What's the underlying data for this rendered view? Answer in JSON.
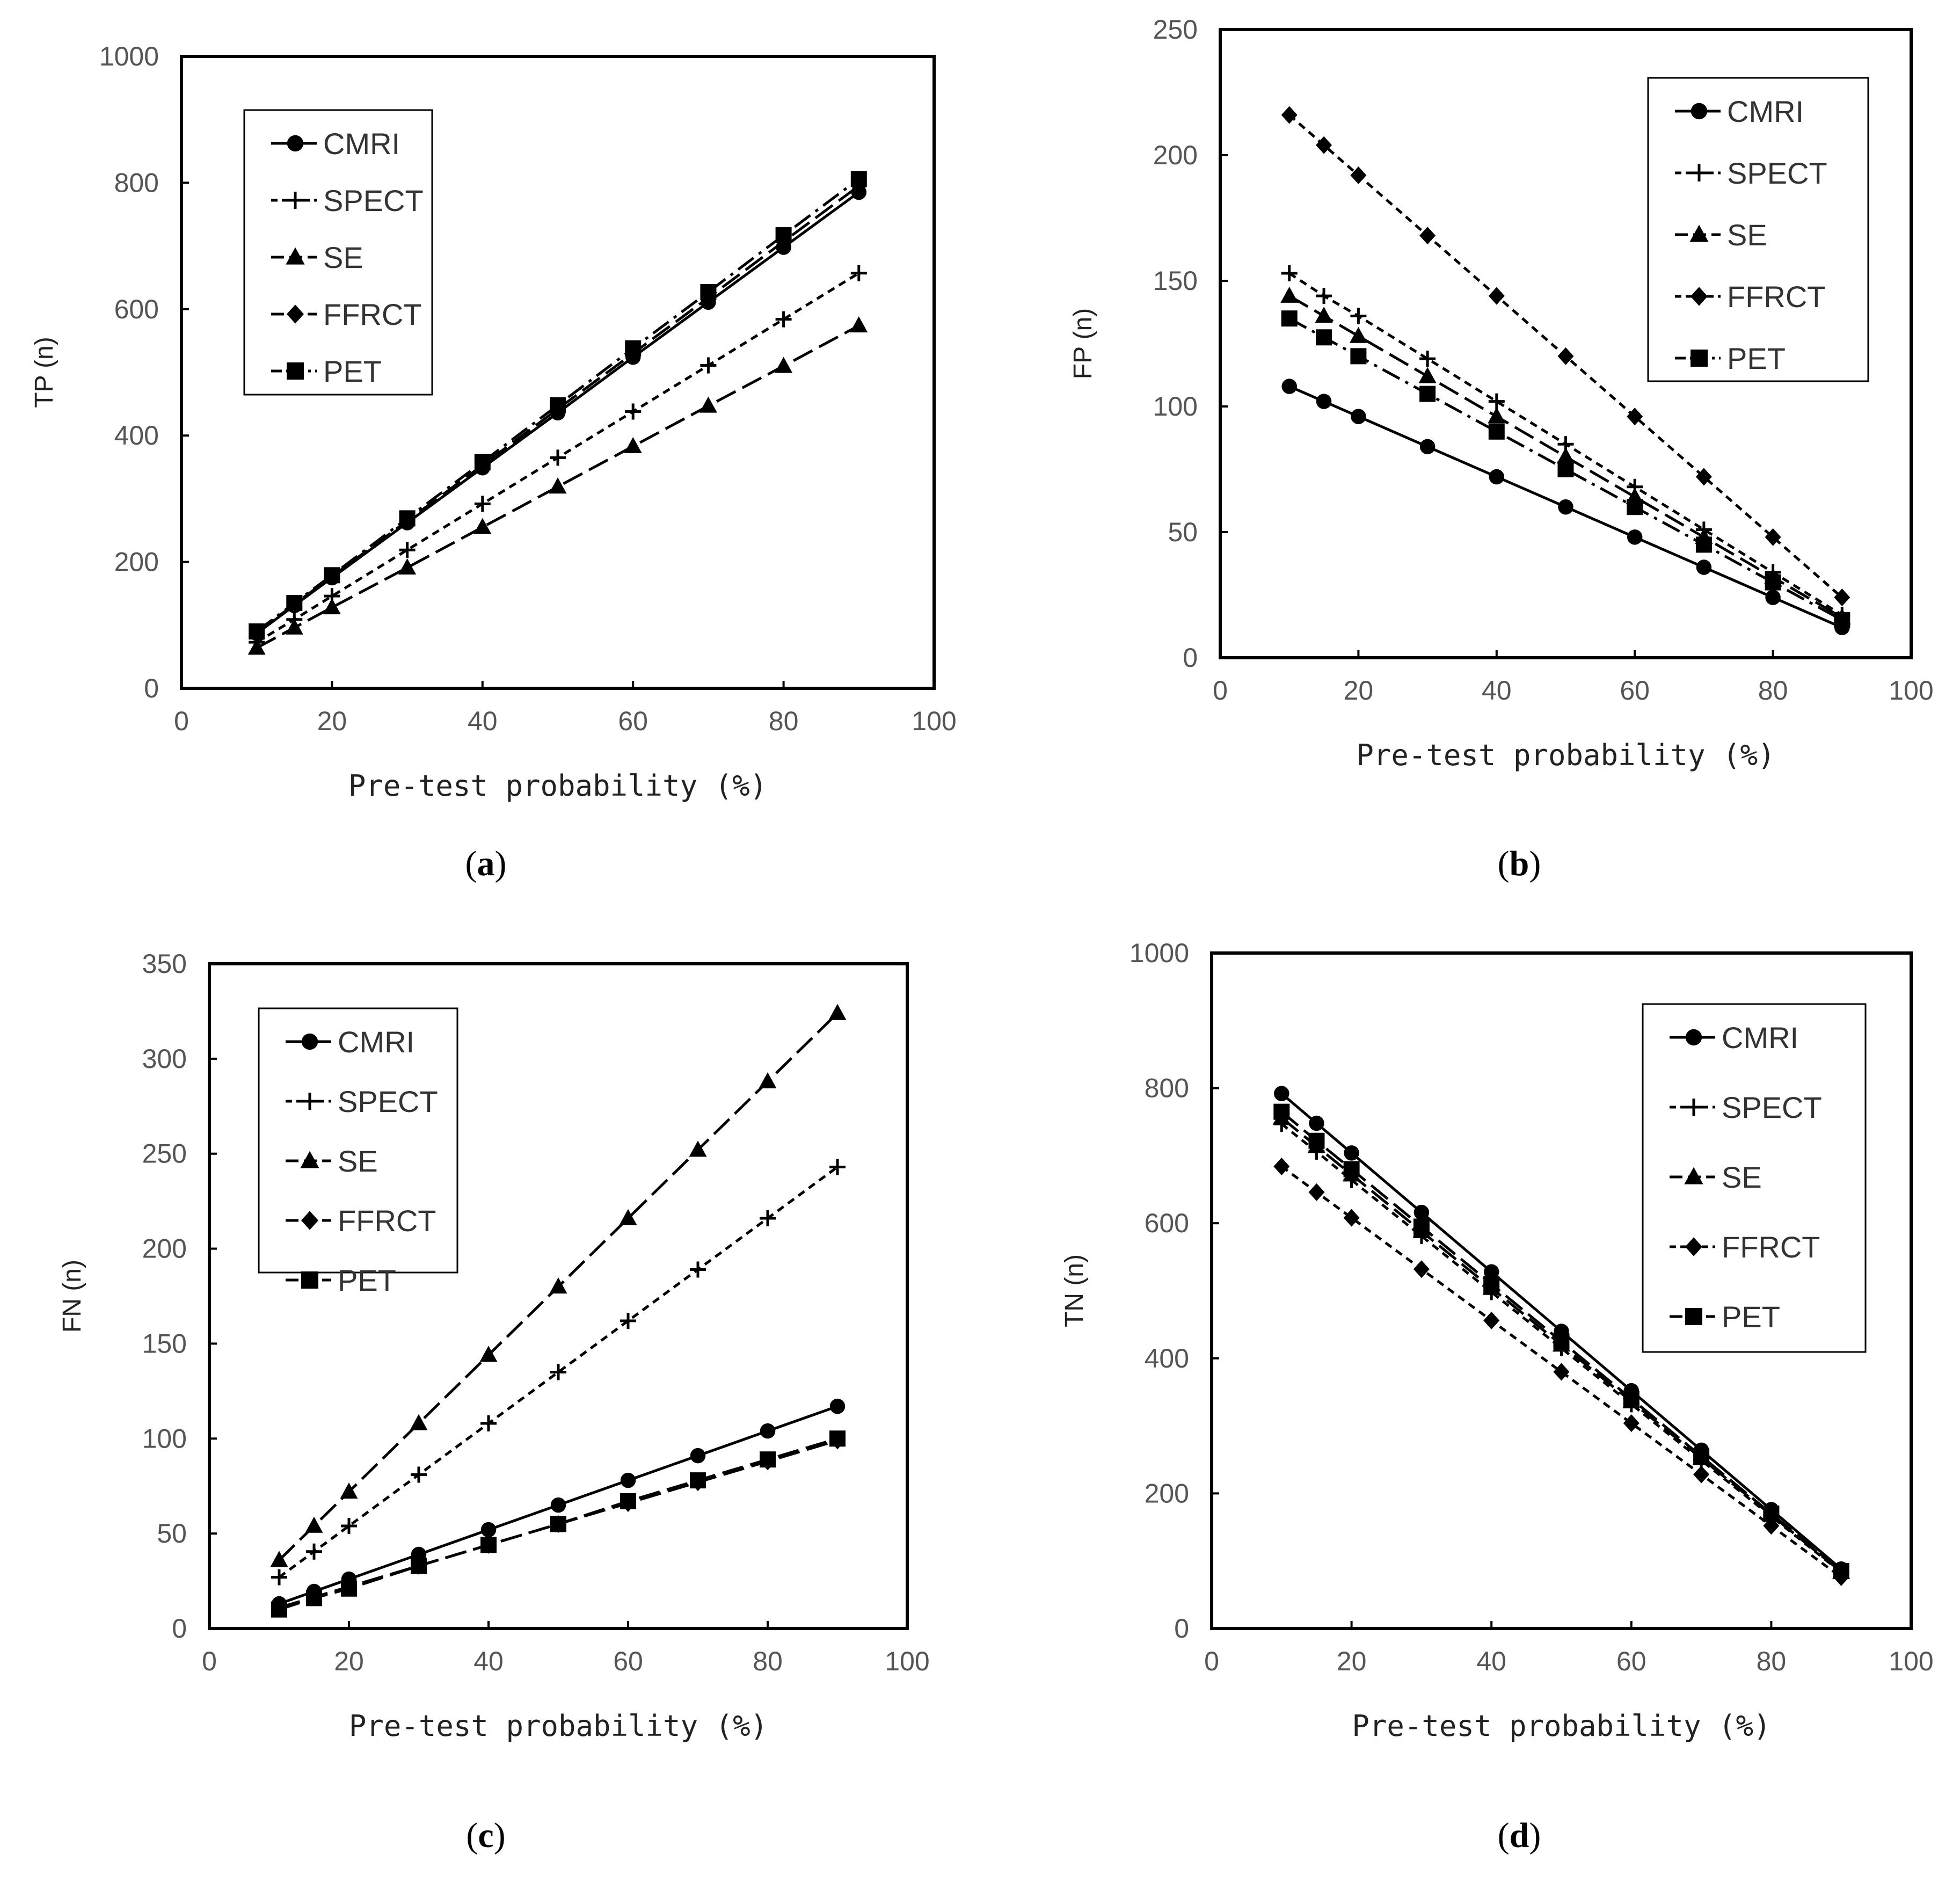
{
  "figure": {
    "panels": [
      {
        "id": "a",
        "label_open": "(",
        "label_letter": "a",
        "label_close": ")"
      },
      {
        "id": "b",
        "label_open": "(",
        "label_letter": "b",
        "label_close": ")"
      },
      {
        "id": "c",
        "label_open": "(",
        "label_letter": "c",
        "label_close": ")"
      },
      {
        "id": "d",
        "label_open": "(",
        "label_letter": "d",
        "label_close": ")"
      }
    ]
  },
  "colors": {
    "line": "#000000",
    "text": "#333333"
  },
  "chart_data": [
    {
      "id": "a",
      "type": "line",
      "title": "",
      "xlabel": "Pre-test probability (%)",
      "ylabel": "TP (n)",
      "xlim": [
        0,
        100
      ],
      "ylim": [
        0,
        1000
      ],
      "xticks": [
        0,
        20,
        40,
        60,
        80,
        100
      ],
      "yticks": [
        0,
        200,
        400,
        600,
        800,
        1000
      ],
      "grid": false,
      "legend_position": "top-left",
      "x": [
        10,
        15,
        20,
        30,
        40,
        50,
        60,
        70,
        80,
        90
      ],
      "series": [
        {
          "name": "CMRI",
          "marker": "circle",
          "dash": "solid",
          "values": [
            87,
            131,
            175,
            262,
            349,
            436,
            524,
            611,
            698,
            785
          ]
        },
        {
          "name": "SPECT",
          "marker": "plus",
          "dash": "short",
          "values": [
            73,
            109,
            146,
            219,
            292,
            365,
            438,
            511,
            584,
            657
          ]
        },
        {
          "name": "SE",
          "marker": "triangle",
          "dash": "long",
          "values": [
            64,
            96,
            128,
            191,
            255,
            319,
            383,
            447,
            510,
            574
          ]
        },
        {
          "name": "FFRCT",
          "marker": "diamond",
          "dash": "long",
          "values": [
            88,
            133,
            177,
            265,
            353,
            442,
            530,
            618,
            707,
            795
          ]
        },
        {
          "name": "PET",
          "marker": "square",
          "dash": "dashdot",
          "values": [
            90,
            135,
            179,
            269,
            358,
            448,
            538,
            627,
            717,
            806
          ]
        }
      ]
    },
    {
      "id": "b",
      "type": "line",
      "title": "",
      "xlabel": "Pre-test probability (%)",
      "ylabel": "FP (n)",
      "xlim": [
        0,
        100
      ],
      "ylim": [
        0,
        250
      ],
      "xticks": [
        0,
        20,
        40,
        60,
        80,
        100
      ],
      "yticks": [
        0,
        50,
        100,
        150,
        200,
        250
      ],
      "grid": false,
      "legend_position": "top-right",
      "x": [
        10,
        15,
        20,
        30,
        40,
        50,
        60,
        70,
        80,
        90
      ],
      "series": [
        {
          "name": "CMRI",
          "marker": "circle",
          "dash": "solid",
          "values": [
            108,
            102,
            96,
            84,
            72,
            60,
            48,
            36,
            24,
            12
          ]
        },
        {
          "name": "SPECT",
          "marker": "plus",
          "dash": "short",
          "values": [
            153,
            144,
            136,
            119,
            102,
            85,
            68,
            51,
            34,
            17
          ]
        },
        {
          "name": "SE",
          "marker": "triangle",
          "dash": "long",
          "values": [
            144,
            136,
            128,
            112,
            96,
            80,
            64,
            48,
            32,
            16
          ]
        },
        {
          "name": "FFRCT",
          "marker": "diamond",
          "dash": "short",
          "values": [
            216,
            204,
            192,
            168,
            144,
            120,
            96,
            72,
            48,
            24
          ]
        },
        {
          "name": "PET",
          "marker": "square",
          "dash": "dashdot",
          "values": [
            135,
            127.5,
            120,
            105,
            90,
            75,
            60,
            45,
            30,
            15
          ]
        }
      ]
    },
    {
      "id": "c",
      "type": "line",
      "title": "",
      "xlabel": "Pre-test probability (%)",
      "ylabel": "FN (n)",
      "xlim": [
        0,
        100
      ],
      "ylim": [
        0,
        350
      ],
      "xticks": [
        0,
        20,
        40,
        60,
        80,
        100
      ],
      "yticks": [
        0,
        50,
        100,
        150,
        200,
        250,
        300,
        350
      ],
      "grid": false,
      "legend_position": "top-left",
      "x": [
        10,
        15,
        20,
        30,
        40,
        50,
        60,
        70,
        80,
        90
      ],
      "series": [
        {
          "name": "CMRI",
          "marker": "circle",
          "dash": "solid",
          "values": [
            13,
            19.5,
            26,
            39,
            52,
            65,
            78,
            91,
            104,
            117
          ]
        },
        {
          "name": "SPECT",
          "marker": "plus",
          "dash": "short",
          "values": [
            27,
            40.5,
            54,
            81,
            108,
            135,
            162,
            189,
            216,
            243
          ]
        },
        {
          "name": "SE",
          "marker": "triangle",
          "dash": "long",
          "values": [
            36,
            54,
            72,
            108,
            144,
            180,
            216,
            252,
            288,
            324
          ]
        },
        {
          "name": "FFRCT",
          "marker": "diamond",
          "dash": "long",
          "values": [
            11,
            16.5,
            22,
            33,
            44,
            55,
            66,
            77,
            88,
            99
          ]
        },
        {
          "name": "PET",
          "marker": "square",
          "dash": "long",
          "values": [
            10,
            16,
            21,
            33,
            44,
            55,
            67,
            78,
            89,
            100
          ]
        }
      ]
    },
    {
      "id": "d",
      "type": "line",
      "title": "",
      "xlabel": "Pre-test probability (%)",
      "ylabel": "TN (n)",
      "xlim": [
        0,
        100
      ],
      "ylim": [
        0,
        1000
      ],
      "xticks": [
        0,
        20,
        40,
        60,
        80,
        100
      ],
      "yticks": [
        0,
        200,
        400,
        600,
        800,
        1000
      ],
      "grid": false,
      "legend_position": "top-right",
      "x": [
        10,
        15,
        20,
        30,
        40,
        50,
        60,
        70,
        80,
        90
      ],
      "series": [
        {
          "name": "CMRI",
          "marker": "circle",
          "dash": "solid",
          "values": [
            792,
            748,
            704,
            616,
            528,
            440,
            352,
            264,
            176,
            88
          ]
        },
        {
          "name": "SPECT",
          "marker": "plus",
          "dash": "short",
          "values": [
            747,
            706,
            664,
            581,
            498,
            415,
            332,
            249,
            166,
            83
          ]
        },
        {
          "name": "SE",
          "marker": "triangle",
          "dash": "long",
          "values": [
            756,
            714,
            672,
            588,
            504,
            420,
            336,
            252,
            168,
            84
          ]
        },
        {
          "name": "FFRCT",
          "marker": "diamond",
          "dash": "short",
          "values": [
            684,
            646,
            608,
            532,
            456,
            380,
            304,
            228,
            152,
            76
          ]
        },
        {
          "name": "PET",
          "marker": "square",
          "dash": "long",
          "values": [
            765,
            722,
            680,
            595,
            510,
            425,
            340,
            255,
            170,
            85
          ]
        }
      ]
    }
  ]
}
